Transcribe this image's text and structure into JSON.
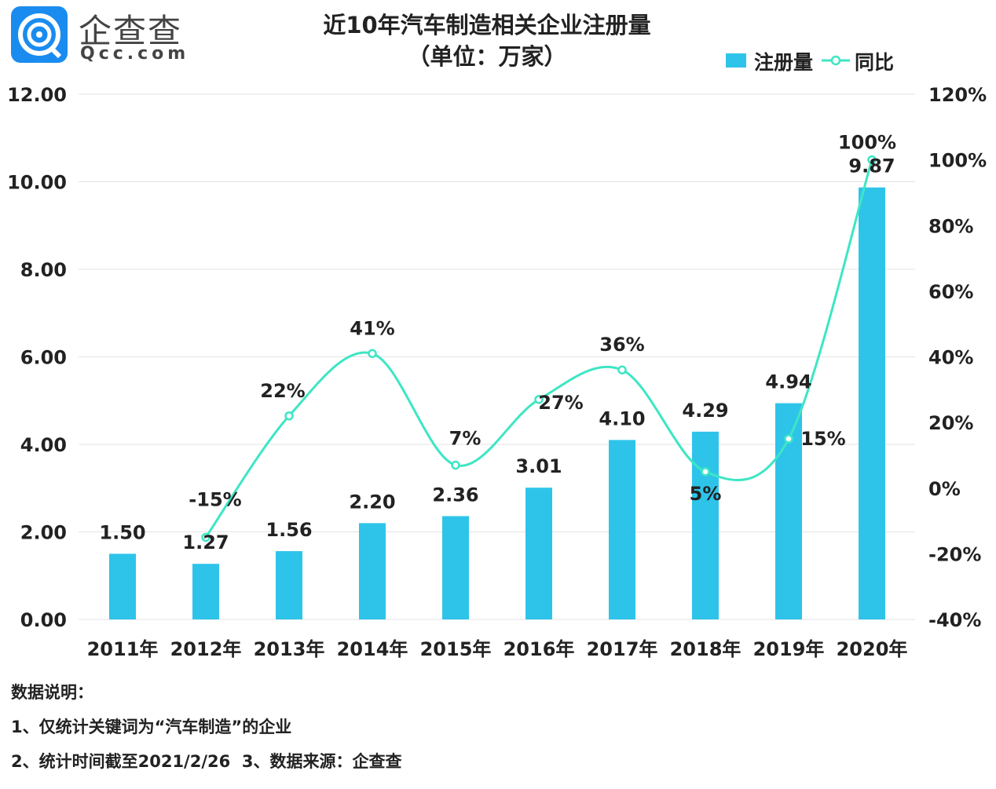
{
  "logo": {
    "cn": "企查查",
    "en": "Qcc.com",
    "color": "#1a8cf0"
  },
  "chart_data": {
    "type": "bar+line",
    "title": "近10年汽车制造相关企业注册量",
    "subtitle": "（单位：万家）",
    "categories": [
      "2011年",
      "2012年",
      "2013年",
      "2014年",
      "2015年",
      "2016年",
      "2017年",
      "2018年",
      "2019年",
      "2020年"
    ],
    "series": [
      {
        "name": "注册量",
        "type": "bar",
        "axis": "left",
        "color": "#2ec4ea",
        "values": [
          1.5,
          1.27,
          1.56,
          2.2,
          2.36,
          3.01,
          4.1,
          4.29,
          4.94,
          9.87
        ],
        "labels": [
          "1.50",
          "1.27",
          "1.56",
          "2.20",
          "2.36",
          "3.01",
          "4.10",
          "4.29",
          "4.94",
          "9.87"
        ]
      },
      {
        "name": "同比",
        "type": "line",
        "axis": "right",
        "color": "#3de6c4",
        "values": [
          null,
          -15,
          22,
          41,
          7,
          27,
          36,
          5,
          15,
          100
        ],
        "labels": [
          "",
          "-15%",
          "22%",
          "41%",
          "7%",
          "27%",
          "36%",
          "5%",
          "15%",
          "100%"
        ]
      }
    ],
    "left_axis": {
      "ylim": [
        0,
        12
      ],
      "ticks": [
        "0.00",
        "2.00",
        "4.00",
        "6.00",
        "8.00",
        "10.00",
        "12.00"
      ]
    },
    "right_axis": {
      "ylim": [
        -40,
        120
      ],
      "ticks": [
        "-40%",
        "-20%",
        "0%",
        "20%",
        "40%",
        "60%",
        "80%",
        "100%",
        "120%"
      ]
    },
    "grid": true,
    "legend_position": "top-right"
  },
  "notes": {
    "heading": "数据说明：",
    "line1": "1、仅统计关键词为“汽车制造”的企业",
    "line2": "2、统计时间截至2021/2/26  3、数据来源：企查查"
  }
}
